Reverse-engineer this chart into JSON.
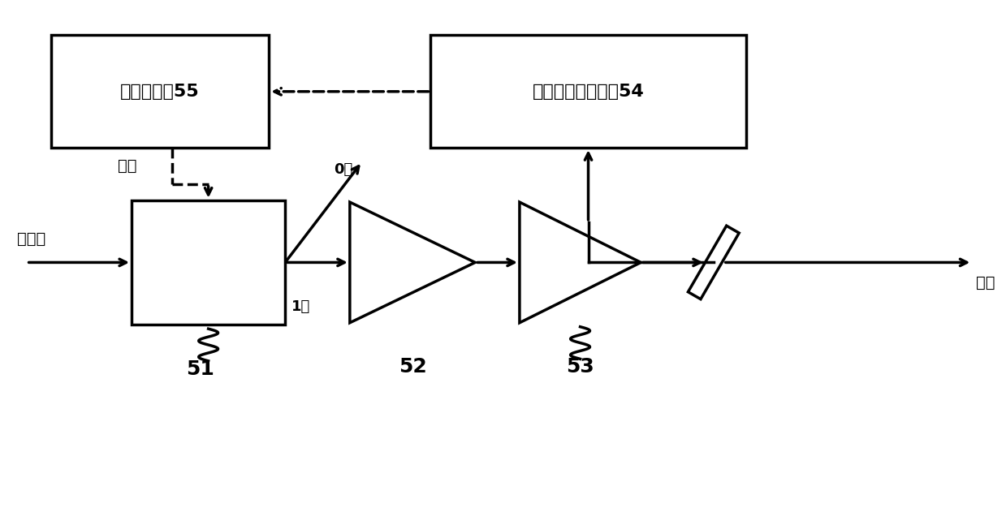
{
  "bg_color": "#ffffff",
  "line_color": "#000000",
  "box1_label": "滤波放大妒55",
  "box2_label": "自参考零频探测装54",
  "label_51": "51",
  "label_52": "52",
  "label_53": "53",
  "label_seedlight": "种子光",
  "label_output": "输出",
  "label_drive": "驱动",
  "label_0level": "0级",
  "label_1level": "1级"
}
